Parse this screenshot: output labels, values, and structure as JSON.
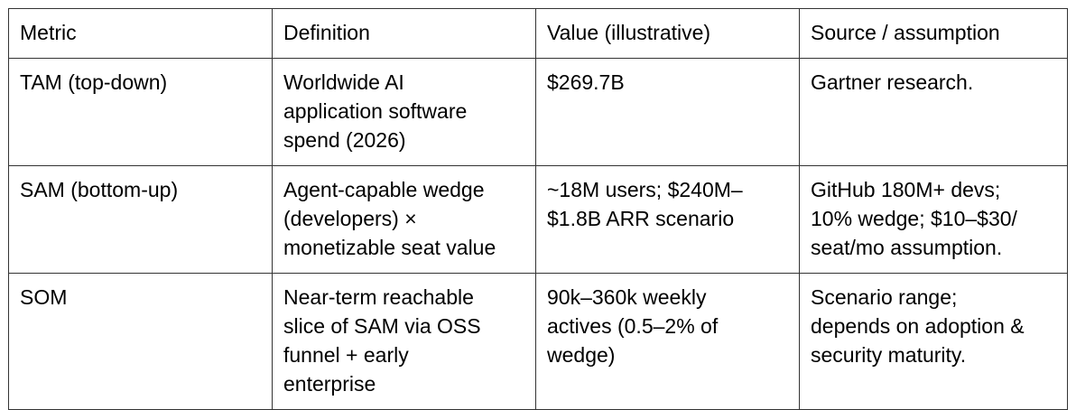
{
  "table": {
    "header": {
      "metric": "Metric",
      "definition": "Definition",
      "value": "Value (illustrative)",
      "source": "Source / assumption"
    },
    "rows": [
      {
        "metric": [
          "TAM (top-down)"
        ],
        "definition": [
          "Worldwide AI",
          "application software",
          "spend (2026)"
        ],
        "value": [
          "$269.7B"
        ],
        "source": [
          "Gartner research."
        ]
      },
      {
        "metric": [
          "SAM (bottom-up)"
        ],
        "definition": [
          "Agent-capable wedge",
          "(developers) ×",
          "monetizable seat value"
        ],
        "value": [
          "~18M users; $240M–",
          "$1.8B ARR scenario"
        ],
        "source": [
          "GitHub 180M+ devs;",
          "10% wedge; $10–$30/",
          "seat/mo assumption."
        ]
      },
      {
        "metric": [
          "SOM"
        ],
        "definition": [
          "Near-term reachable",
          "slice of SAM via OSS",
          "funnel + early",
          "enterprise"
        ],
        "value": [
          "90k–360k weekly",
          "actives (0.5–2% of",
          "wedge)"
        ],
        "source": [
          "Scenario range;",
          "depends on adoption &",
          "security maturity."
        ]
      }
    ]
  }
}
